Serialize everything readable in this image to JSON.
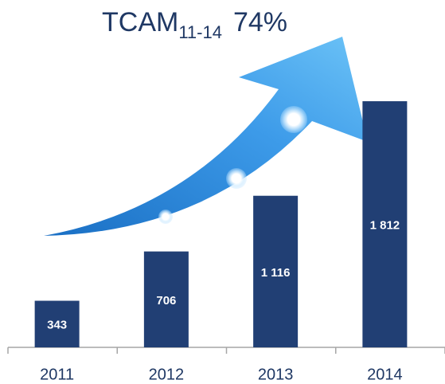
{
  "chart_data": {
    "type": "bar",
    "title": "TCAM",
    "title_subscript": "11-14",
    "annotation": "74%",
    "categories": [
      "2011",
      "2012",
      "2013",
      "2014"
    ],
    "values": [
      343,
      706,
      1116,
      1812
    ],
    "value_labels": [
      "343",
      "706",
      "1 116",
      "1 812"
    ],
    "color": "#213f74",
    "ylim": [
      0,
      2000
    ]
  }
}
